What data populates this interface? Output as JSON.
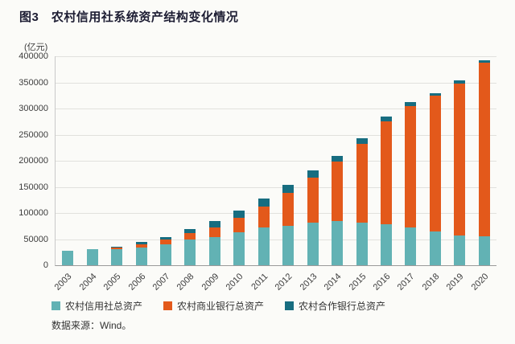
{
  "title": "图3　农村信用社系统资产结构变化情况",
  "source": "数据来源：Wind。",
  "colors": {
    "rural_credit_coop": "#62b2b4",
    "rural_commercial_bank": "#e3591b",
    "rural_cooperative_bank": "#176d80",
    "title_text": "#1d1d33",
    "axis_text": "#3d3d3d",
    "gridline": "#e1e1dd",
    "background": "#fbfbf8"
  },
  "chart_data": {
    "type": "bar",
    "stacked": true,
    "title": "图3　农村信用社系统资产结构变化情况",
    "ylabel": "(亿元)",
    "xlabel": "",
    "ylim": [
      0,
      400000
    ],
    "ytick_step": 50000,
    "grid": true,
    "legend_position": "bottom",
    "categories": [
      "2003",
      "2004",
      "2005",
      "2006",
      "2007",
      "2008",
      "2009",
      "2010",
      "2011",
      "2012",
      "2013",
      "2014",
      "2015",
      "2016",
      "2017",
      "2018",
      "2019",
      "2020"
    ],
    "series": [
      {
        "name": "农村信用社总资产",
        "color": "#62b2b4",
        "values": [
          27000,
          31000,
          31500,
          34000,
          40000,
          49000,
          54000,
          63000,
          72000,
          76000,
          82000,
          85000,
          82000,
          78000,
          73000,
          64000,
          57000,
          55000
        ]
      },
      {
        "name": "农村商业银行总资产",
        "color": "#e3591b",
        "values": [
          0,
          0,
          2500,
          5500,
          9000,
          12000,
          19000,
          28000,
          40000,
          62000,
          85000,
          113000,
          151000,
          197000,
          232000,
          260000,
          291000,
          333000
        ]
      },
      {
        "name": "农村合作银行总资产",
        "color": "#176d80",
        "values": [
          0,
          0,
          1500,
          4500,
          5000,
          8000,
          12000,
          14000,
          16000,
          16000,
          15000,
          12000,
          10000,
          9000,
          8000,
          6000,
          6000,
          5000
        ]
      }
    ]
  }
}
